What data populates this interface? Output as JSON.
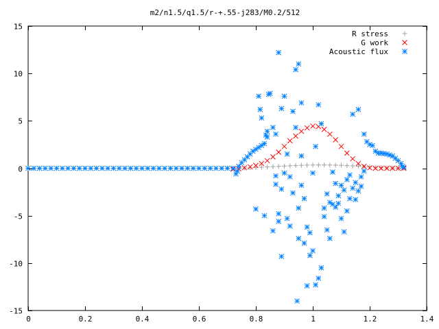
{
  "chart_data": {
    "type": "scatter",
    "title": "m2/n1.5/q1.5/r-+.55-j283/M0.2/512",
    "xlabel": "",
    "ylabel": "",
    "xlim": [
      0,
      1.4
    ],
    "ylim": [
      -15,
      15
    ],
    "x_ticks": [
      0,
      0.2,
      0.4,
      0.6,
      0.8,
      1,
      1.2,
      1.4
    ],
    "x_tick_labels": [
      "0",
      "0.2",
      "0.4",
      "0.6",
      "0.8",
      "1",
      "1.2",
      "1.4"
    ],
    "y_ticks": [
      -15,
      -10,
      -5,
      0,
      5,
      10,
      15
    ],
    "y_tick_labels": [
      "-15",
      "-10",
      "-5",
      "0",
      "5",
      "10",
      "15"
    ],
    "grid": false,
    "legend_position": "top-right",
    "series": [
      {
        "name": "R stress",
        "marker": "+",
        "color": "#a0a0a0",
        "points": [
          [
            0.72,
            0.0
          ],
          [
            0.74,
            0.01
          ],
          [
            0.76,
            0.03
          ],
          [
            0.78,
            0.05
          ],
          [
            0.8,
            0.08
          ],
          [
            0.82,
            0.11
          ],
          [
            0.84,
            0.14
          ],
          [
            0.86,
            0.17
          ],
          [
            0.88,
            0.2
          ],
          [
            0.9,
            0.23
          ],
          [
            0.92,
            0.26
          ],
          [
            0.94,
            0.29
          ],
          [
            0.96,
            0.31
          ],
          [
            0.98,
            0.33
          ],
          [
            1.0,
            0.34
          ],
          [
            1.02,
            0.35
          ],
          [
            1.04,
            0.35
          ],
          [
            1.06,
            0.34
          ],
          [
            1.08,
            0.33
          ],
          [
            1.1,
            0.31
          ],
          [
            1.12,
            0.28
          ],
          [
            1.14,
            0.25
          ],
          [
            1.16,
            0.22
          ],
          [
            1.18,
            0.18
          ],
          [
            1.2,
            0.14
          ],
          [
            1.22,
            0.1
          ],
          [
            1.24,
            0.06
          ],
          [
            1.26,
            0.03
          ],
          [
            1.28,
            0.01
          ],
          [
            1.3,
            0.0
          ],
          [
            1.32,
            0.0
          ]
        ]
      },
      {
        "name": "G work",
        "marker": "x",
        "color": "#ff0000",
        "points": [
          [
            0.72,
            -0.1
          ],
          [
            0.74,
            -0.05
          ],
          [
            0.76,
            0.05
          ],
          [
            0.78,
            0.15
          ],
          [
            0.8,
            0.3
          ],
          [
            0.82,
            0.5
          ],
          [
            0.84,
            0.8
          ],
          [
            0.86,
            1.2
          ],
          [
            0.88,
            1.7
          ],
          [
            0.9,
            2.3
          ],
          [
            0.92,
            2.9
          ],
          [
            0.94,
            3.4
          ],
          [
            0.96,
            3.9
          ],
          [
            0.98,
            4.25
          ],
          [
            1.0,
            4.45
          ],
          [
            1.02,
            4.4
          ],
          [
            1.04,
            4.1
          ],
          [
            1.06,
            3.6
          ],
          [
            1.08,
            3.0
          ],
          [
            1.1,
            2.3
          ],
          [
            1.12,
            1.6
          ],
          [
            1.14,
            1.0
          ],
          [
            1.16,
            0.5
          ],
          [
            1.18,
            0.2
          ],
          [
            1.2,
            0.05
          ],
          [
            1.22,
            0.0
          ],
          [
            1.24,
            0.0
          ],
          [
            1.26,
            0.0
          ],
          [
            1.28,
            0.0
          ],
          [
            1.3,
            0.0
          ],
          [
            1.32,
            0.0
          ]
        ]
      },
      {
        "name": "Acoustic flux",
        "marker": "*",
        "color": "#0080ff",
        "points": [
          [
            0.0,
            0.0
          ],
          [
            0.02,
            0.0
          ],
          [
            0.04,
            0.0
          ],
          [
            0.06,
            0.0
          ],
          [
            0.08,
            0.0
          ],
          [
            0.1,
            0.0
          ],
          [
            0.12,
            0.0
          ],
          [
            0.14,
            0.0
          ],
          [
            0.16,
            0.0
          ],
          [
            0.18,
            0.0
          ],
          [
            0.2,
            0.0
          ],
          [
            0.22,
            0.0
          ],
          [
            0.24,
            0.0
          ],
          [
            0.26,
            0.0
          ],
          [
            0.28,
            0.0
          ],
          [
            0.3,
            0.0
          ],
          [
            0.32,
            0.0
          ],
          [
            0.34,
            0.0
          ],
          [
            0.36,
            0.0
          ],
          [
            0.38,
            0.0
          ],
          [
            0.4,
            0.0
          ],
          [
            0.42,
            0.0
          ],
          [
            0.44,
            0.0
          ],
          [
            0.46,
            0.0
          ],
          [
            0.48,
            0.0
          ],
          [
            0.5,
            0.0
          ],
          [
            0.52,
            0.0
          ],
          [
            0.54,
            0.0
          ],
          [
            0.56,
            0.0
          ],
          [
            0.58,
            0.0
          ],
          [
            0.6,
            0.0
          ],
          [
            0.62,
            0.0
          ],
          [
            0.64,
            0.0
          ],
          [
            0.66,
            0.0
          ],
          [
            0.68,
            0.0
          ],
          [
            0.7,
            0.0
          ],
          [
            0.72,
            0.0
          ],
          [
            0.73,
            -0.6
          ],
          [
            0.735,
            -0.3
          ],
          [
            0.74,
            0.2
          ],
          [
            0.75,
            0.6
          ],
          [
            0.76,
            0.9
          ],
          [
            0.77,
            1.2
          ],
          [
            0.78,
            1.5
          ],
          [
            0.79,
            1.8
          ],
          [
            0.8,
            2.0
          ],
          [
            0.81,
            2.2
          ],
          [
            0.82,
            2.4
          ],
          [
            0.83,
            2.6
          ],
          [
            0.835,
            3.5
          ],
          [
            0.84,
            3.9
          ],
          [
            0.8,
            -4.3
          ],
          [
            0.81,
            7.6
          ],
          [
            0.815,
            6.2
          ],
          [
            0.82,
            5.3
          ],
          [
            0.83,
            -5.0
          ],
          [
            0.84,
            3.3
          ],
          [
            0.845,
            7.8
          ],
          [
            0.85,
            7.9
          ],
          [
            0.86,
            4.3
          ],
          [
            0.86,
            -6.6
          ],
          [
            0.87,
            3.6
          ],
          [
            0.87,
            -0.8
          ],
          [
            0.87,
            -1.7
          ],
          [
            0.88,
            -4.8
          ],
          [
            0.88,
            -5.6
          ],
          [
            0.88,
            12.2
          ],
          [
            0.89,
            6.3
          ],
          [
            0.89,
            -2.2
          ],
          [
            0.89,
            -9.3
          ],
          [
            0.9,
            7.6
          ],
          [
            0.9,
            -0.5
          ],
          [
            0.91,
            1.5
          ],
          [
            0.91,
            -5.3
          ],
          [
            0.92,
            -0.9
          ],
          [
            0.92,
            -6.1
          ],
          [
            0.93,
            -2.6
          ],
          [
            0.93,
            6.0
          ],
          [
            0.94,
            10.4
          ],
          [
            0.94,
            4.3
          ],
          [
            0.945,
            -14.0
          ],
          [
            0.95,
            -7.4
          ],
          [
            0.95,
            11.0
          ],
          [
            0.95,
            -4.2
          ],
          [
            0.96,
            1.3
          ],
          [
            0.96,
            6.9
          ],
          [
            0.96,
            -1.8
          ],
          [
            0.97,
            -3.2
          ],
          [
            0.97,
            -7.9
          ],
          [
            0.98,
            -6.2
          ],
          [
            0.98,
            -12.4
          ],
          [
            0.99,
            -6.8
          ],
          [
            0.99,
            -9.2
          ],
          [
            1.0,
            -8.7
          ],
          [
            1.0,
            -0.5
          ],
          [
            1.01,
            2.3
          ],
          [
            1.01,
            -12.3
          ],
          [
            1.02,
            6.7
          ],
          [
            1.02,
            -11.6
          ],
          [
            1.03,
            4.7
          ],
          [
            1.03,
            -10.5
          ],
          [
            1.04,
            -4.2
          ],
          [
            1.04,
            -5.1
          ],
          [
            1.05,
            -6.5
          ],
          [
            1.05,
            -2.7
          ],
          [
            1.06,
            -3.6
          ],
          [
            1.06,
            -7.4
          ],
          [
            1.07,
            -3.8
          ],
          [
            1.07,
            -0.4
          ],
          [
            1.08,
            -1.6
          ],
          [
            1.08,
            -4.1
          ],
          [
            1.09,
            -2.9
          ],
          [
            1.09,
            -3.7
          ],
          [
            1.1,
            -5.3
          ],
          [
            1.1,
            -1.8
          ],
          [
            1.11,
            -2.3
          ],
          [
            1.11,
            -6.7
          ],
          [
            1.12,
            -1.2
          ],
          [
            1.12,
            -4.5
          ],
          [
            1.13,
            -3.2
          ],
          [
            1.13,
            -0.7
          ],
          [
            1.14,
            -2.1
          ],
          [
            1.14,
            5.7
          ],
          [
            1.15,
            -1.5
          ],
          [
            1.15,
            -3.3
          ],
          [
            1.16,
            6.2
          ],
          [
            1.16,
            -2.4
          ],
          [
            1.17,
            -1.9
          ],
          [
            1.17,
            -0.9
          ],
          [
            1.18,
            3.6
          ],
          [
            1.18,
            -0.3
          ],
          [
            1.19,
            2.8
          ],
          [
            1.2,
            2.5
          ],
          [
            1.21,
            2.4
          ],
          [
            1.22,
            1.8
          ],
          [
            1.23,
            1.6
          ],
          [
            1.24,
            1.6
          ],
          [
            1.25,
            1.55
          ],
          [
            1.26,
            1.5
          ],
          [
            1.27,
            1.4
          ],
          [
            1.28,
            1.3
          ],
          [
            1.29,
            1.05
          ],
          [
            1.3,
            0.8
          ],
          [
            1.31,
            0.5
          ],
          [
            1.315,
            0.2
          ],
          [
            1.32,
            0.1
          ]
        ]
      }
    ]
  }
}
